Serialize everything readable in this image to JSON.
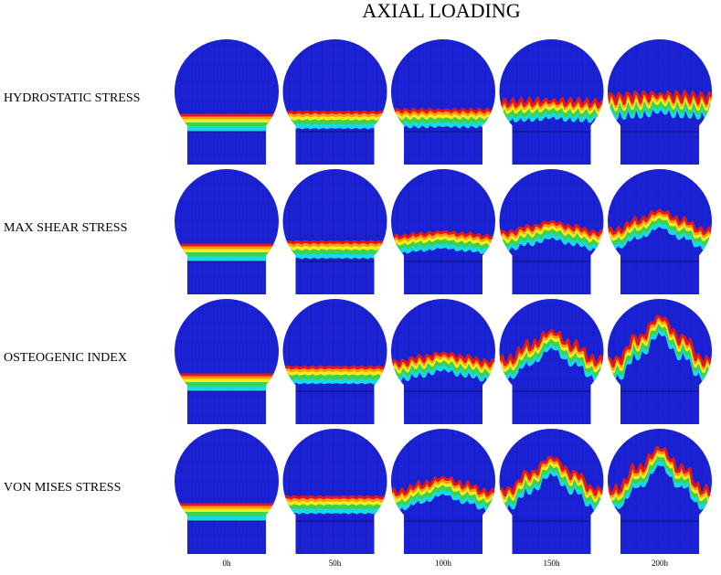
{
  "title": "AXIAL LOADING",
  "rows": [
    "HYDROSTATIC STRESS",
    "MAX SHEAR STRESS",
    "OSTEOGENIC INDEX",
    "VON MISES STRESS"
  ],
  "columns": [
    "0h",
    "50h",
    "100h",
    "150h",
    "200h"
  ]
}
